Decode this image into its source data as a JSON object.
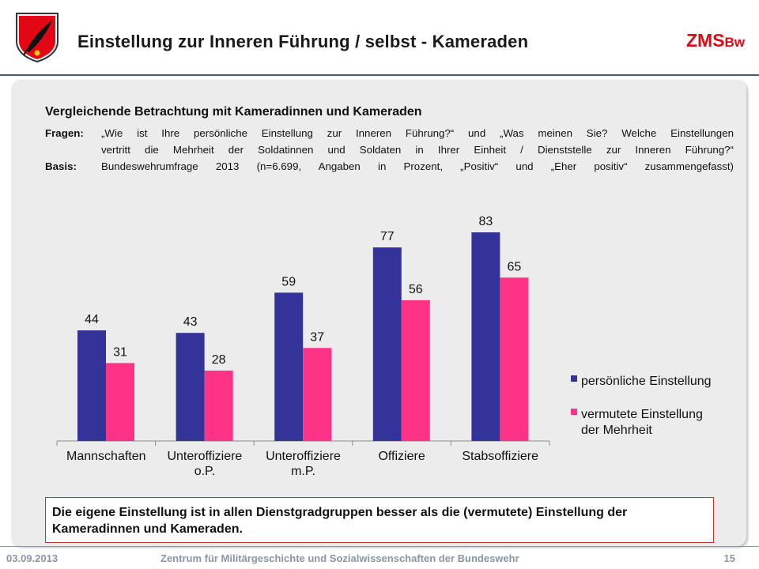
{
  "header": {
    "title": "Einstellung zur Inneren Führung / selbst - Kameraden",
    "brand_main": "ZMS",
    "brand_sub": "Bw",
    "logo_icon": "shield-feather-icon"
  },
  "intro": {
    "subtitle": "Vergleichende Betrachtung mit Kameradinnen und Kameraden",
    "fragen_label": "Fragen:",
    "fragen_line1": "„Wie ist Ihre persönliche Einstellung zur Inneren Führung?“ und „Was meinen Sie? Welche Einstellungen",
    "fragen_line2": "vertritt die Mehrheit der Soldatinnen und Soldaten in Ihrer Einheit / Dienststelle zur Inneren Führung?“",
    "basis_label": "Basis:",
    "basis_text": "Bundeswehrumfrage 2013 (n=6.699, Angaben in Prozent, „Positiv“ und „Eher positiv“ zusammengefasst)"
  },
  "chart_data": {
    "type": "bar",
    "categories": [
      [
        "Mannschaften"
      ],
      [
        "Unteroffiziere",
        "o.P."
      ],
      [
        "Unteroffiziere",
        "m.P."
      ],
      [
        "Offiziere"
      ],
      [
        "Stabsoffiziere"
      ]
    ],
    "series": [
      {
        "name": "persönliche Einstellung",
        "color": "#333399",
        "values": [
          44,
          43,
          59,
          77,
          83
        ]
      },
      {
        "name": "vermutete Einstellung der Mehrheit",
        "color": "#ff3385",
        "values": [
          31,
          28,
          37,
          56,
          65
        ]
      }
    ],
    "legend_lines": [
      [
        "persönliche Einstellung"
      ],
      [
        "vermutete Einstellung",
        "der Mehrheit"
      ]
    ],
    "ylim": [
      0,
      100
    ],
    "grid": false,
    "legend_position": "right"
  },
  "callout": {
    "text": "Die eigene Einstellung ist in allen Dienstgradgruppen besser als die (vermutete) Einstellung der Kameradinnen und Kameraden."
  },
  "footer": {
    "date": "03.09.2013",
    "institution": "Zentrum für Militärgeschichte und Sozialwissenschaften der Bundeswehr",
    "page": "15"
  }
}
